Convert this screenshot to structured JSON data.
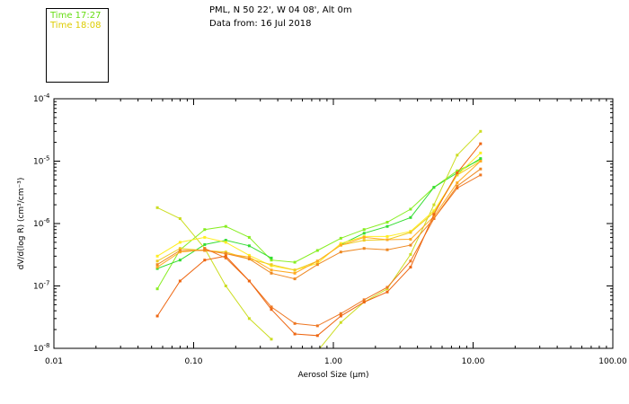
{
  "header": {
    "station": "PML, N 50 22', W 04 08', Alt 0m",
    "data_from": "Data from: 16 Jul 2018"
  },
  "legend": [
    {
      "label": "Time 17:27",
      "color": "#66dd11"
    },
    {
      "label": "Time 18:08",
      "color": "#ddcc00"
    }
  ],
  "chart_data": {
    "type": "line",
    "title": "PML, N 50 22', W 04 08', Alt 0m",
    "xlabel": "Aerosol Size (µm)",
    "ylabel": "dV/d(log R) (cm³/cm⁻³)",
    "xscale": "log",
    "yscale": "log",
    "xlim": [
      0.01,
      100
    ],
    "ylim": [
      1e-08,
      0.0001
    ],
    "x_ticks": [
      {
        "value": 0.01,
        "label": "0.01"
      },
      {
        "value": 0.1,
        "label": "0.10"
      },
      {
        "value": 1,
        "label": "1.00"
      },
      {
        "value": 10,
        "label": "10.00"
      },
      {
        "value": 100,
        "label": "100.00"
      }
    ],
    "y_ticks": [
      {
        "value": 1e-08,
        "base": "10",
        "exp": "-8"
      },
      {
        "value": 1e-07,
        "base": "10",
        "exp": "-7"
      },
      {
        "value": 1e-06,
        "base": "10",
        "exp": "-6"
      },
      {
        "value": 1e-05,
        "base": "10",
        "exp": "-5"
      },
      {
        "value": 0.0001,
        "base": "10",
        "exp": "-4"
      }
    ],
    "x": [
      0.055,
      0.08,
      0.12,
      0.17,
      0.25,
      0.36,
      0.53,
      0.77,
      1.13,
      1.66,
      2.43,
      3.57,
      5.24,
      7.7,
      11.3
    ],
    "series": [
      {
        "name": "series-1",
        "color": "#88ee22",
        "values": [
          9e-08,
          3.8e-07,
          8e-07,
          9e-07,
          6e-07,
          2.6e-07,
          2.4e-07,
          3.7e-07,
          5.8e-07,
          8e-07,
          1.05e-06,
          1.7e-06,
          3.8e-06,
          7e-06,
          1.05e-05
        ]
      },
      {
        "name": "series-2",
        "color": "#33dd33",
        "values": [
          1.9e-07,
          2.6e-07,
          4.6e-07,
          5.4e-07,
          4.4e-07,
          2.8e-07,
          null,
          null,
          4.6e-07,
          7e-07,
          9e-07,
          1.25e-06,
          3.8e-06,
          6.5e-06,
          1.1e-05
        ]
      },
      {
        "name": "series-3",
        "color": "#ccdd22",
        "values": [
          1.8e-06,
          1.2e-06,
          4e-07,
          1e-07,
          3e-08,
          1.4e-08,
          null,
          null,
          null,
          null,
          null,
          null,
          null,
          null,
          null
        ]
      },
      {
        "name": "series-4",
        "color": "#ccdd22",
        "values": [
          null,
          null,
          null,
          null,
          null,
          null,
          null,
          9e-09,
          2.6e-08,
          5.5e-08,
          9e-08,
          3.2e-07,
          2e-06,
          1.25e-05,
          3e-05
        ]
      },
      {
        "name": "series-5",
        "color": "#ffee22",
        "values": [
          3e-07,
          5e-07,
          6e-07,
          5e-07,
          3.1e-07,
          2.1e-07,
          1.8e-07,
          2.3e-07,
          4.8e-07,
          6.2e-07,
          6.2e-07,
          7.5e-07,
          1.6e-06,
          6e-06,
          1.35e-05
        ]
      },
      {
        "name": "series-6",
        "color": "#eecc22",
        "values": [
          2.5e-07,
          4e-07,
          3.7e-07,
          3.5e-07,
          2.7e-07,
          2.2e-07,
          1.8e-07,
          2.5e-07,
          4.5e-07,
          5.4e-07,
          5.5e-07,
          7.2e-07,
          1.5e-06,
          6e-06,
          1e-05
        ]
      },
      {
        "name": "series-7",
        "color": "#ffaa22",
        "values": [
          2e-07,
          3.5e-07,
          3.8e-07,
          3.3e-07,
          2.9e-07,
          1.8e-07,
          1.6e-07,
          2.5e-07,
          4.5e-07,
          6e-07,
          5.5e-07,
          5.6e-07,
          1.3e-06,
          4.5e-06,
          1e-05
        ]
      },
      {
        "name": "series-8",
        "color": "#ee8822",
        "values": [
          2.2e-07,
          3.7e-07,
          3.7e-07,
          3.3e-07,
          2.7e-07,
          1.6e-07,
          1.3e-07,
          2.2e-07,
          3.5e-07,
          4e-07,
          3.8e-07,
          4.5e-07,
          1.2e-06,
          4e-06,
          7.5e-06
        ]
      },
      {
        "name": "series-9",
        "color": "#ee7722",
        "values": [
          null,
          null,
          4e-07,
          2.8e-07,
          1.2e-07,
          4.6e-08,
          2.5e-08,
          2.3e-08,
          3.6e-08,
          6e-08,
          9.5e-08,
          2.5e-07,
          1.2e-06,
          3.7e-06,
          6e-06
        ]
      },
      {
        "name": "series-10",
        "color": "#ee6611",
        "values": [
          3.3e-08,
          1.2e-07,
          2.6e-07,
          3e-07,
          1.2e-07,
          4.2e-08,
          1.7e-08,
          1.6e-08,
          3.3e-08,
          5.5e-08,
          8e-08,
          2e-07,
          1.4e-06,
          6.5e-06,
          1.9e-05
        ]
      }
    ]
  }
}
